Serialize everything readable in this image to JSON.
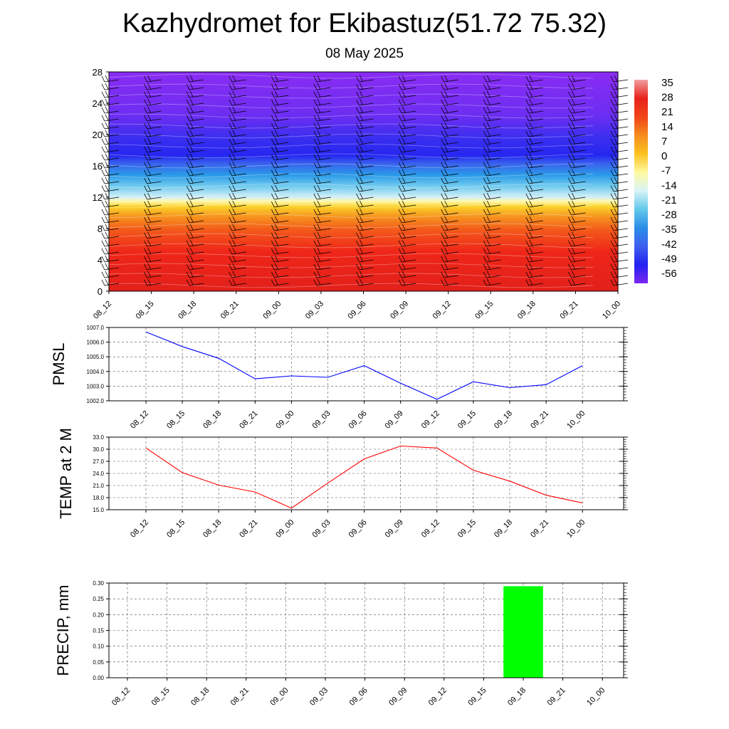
{
  "header": {
    "title": "Kazhydromet for Ekibastuz(51.72 75.32)",
    "subtitle": "08 May 2025"
  },
  "colors": {
    "warm": "#e8231b",
    "cold": "#7b26f2",
    "pmsl_line": "#0000ff",
    "temp_line": "#ff0000",
    "precip_bar": "#00ff00"
  },
  "chart_data": [
    {
      "type": "heatmap",
      "title": "",
      "description_note": "",
      "x": [
        "08_12",
        "08_15",
        "08_18",
        "08_21",
        "09_00",
        "09_03",
        "09_06",
        "09_09",
        "09_12",
        "09_15",
        "09_18",
        "09_21",
        "10_00"
      ],
      "y_ticks": [
        0,
        4,
        8,
        12,
        16,
        20,
        24,
        28
      ],
      "ylim": [
        0,
        28
      ],
      "colorbar_labels": [
        "35",
        "28",
        "21",
        "14",
        "7",
        "0",
        "-7",
        "-14",
        "-21",
        "-28",
        "-35",
        "-42",
        "-49",
        "-56"
      ],
      "colorbar_stops": [
        "#f0a0a0",
        "#e8231b",
        "#f24419",
        "#f68b1f",
        "#fac21f",
        "#fff9a0",
        "#d8f4f7",
        "#63c9ec",
        "#2a8de8",
        "#3f5ef0",
        "#2222f0",
        "#7b26f2"
      ],
      "overlay": "wind barbs",
      "grid": false
    },
    {
      "type": "line",
      "ylabel": "PMSL",
      "x": [
        "08_12",
        "08_15",
        "08_18",
        "08_21",
        "09_00",
        "09_03",
        "09_06",
        "09_09",
        "09_12",
        "09_15",
        "09_18",
        "09_21",
        "10_00"
      ],
      "ylim": [
        1002.0,
        1007.0
      ],
      "y_ticks": [
        "1002.0",
        "1003.0",
        "1004.0",
        "1005.0",
        "1006.0",
        "1007.0"
      ],
      "series": [
        {
          "values": [
            1006.7,
            1005.7,
            1004.9,
            1003.5,
            1003.7,
            1003.6,
            1004.4,
            1003.2,
            1002.1,
            1003.3,
            1002.9,
            1003.1,
            1004.4
          ]
        }
      ],
      "grid": true
    },
    {
      "type": "line",
      "ylabel": "TEMP at 2 M",
      "x": [
        "08_12",
        "08_15",
        "08_18",
        "08_21",
        "09_00",
        "09_03",
        "09_06",
        "09_09",
        "09_12",
        "09_15",
        "09_18",
        "09_21",
        "10_00"
      ],
      "ylim": [
        15.0,
        33.0
      ],
      "y_ticks": [
        "15.0",
        "18.0",
        "21.0",
        "24.0",
        "27.0",
        "30.0",
        "33.0"
      ],
      "series": [
        {
          "values": [
            30.3,
            24.2,
            21.1,
            19.4,
            15.4,
            21.6,
            27.6,
            30.8,
            30.3,
            24.8,
            22.1,
            18.6,
            16.7
          ]
        }
      ],
      "grid": true
    },
    {
      "type": "bar",
      "ylabel": "PRECIP, mm",
      "x": [
        "08_12",
        "08_15",
        "08_18",
        "08_21",
        "09_00",
        "09_03",
        "09_06",
        "09_09",
        "09_12",
        "09_15",
        "09_18",
        "09_21",
        "10_00"
      ],
      "ylim": [
        0.0,
        0.3
      ],
      "y_ticks": [
        "0.00",
        "0.05",
        "0.10",
        "0.15",
        "0.20",
        "0.25",
        "0.30"
      ],
      "series": [
        {
          "values": [
            0,
            0,
            0,
            0,
            0,
            0,
            0,
            0,
            0,
            0,
            0.29,
            0,
            0
          ]
        }
      ],
      "grid": true
    }
  ]
}
